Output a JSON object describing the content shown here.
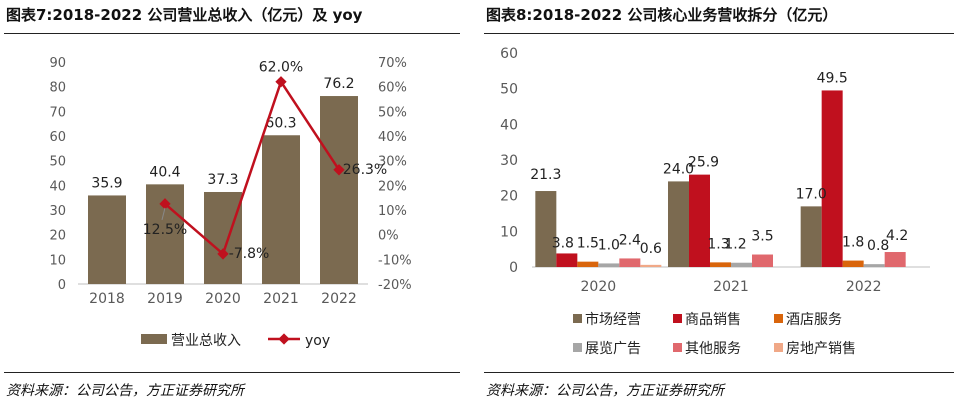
{
  "chart_data": [
    {
      "type": "bar",
      "title": "图表7:2018-2022 公司营业总收入（亿元）及 yoy",
      "categories": [
        "2018",
        "2019",
        "2020",
        "2021",
        "2022"
      ],
      "series": [
        {
          "name": "营业总收入",
          "type": "bar",
          "axis": "left",
          "color": "#7b6a50",
          "values": [
            35.9,
            40.4,
            37.3,
            60.3,
            76.2
          ],
          "labels": [
            "35.9",
            "40.4",
            "37.3",
            "60.3",
            "76.2"
          ]
        },
        {
          "name": "yoy",
          "type": "line",
          "axis": "right",
          "color": "#c0101e",
          "values": [
            null,
            12.5,
            -7.8,
            62.0,
            26.3
          ],
          "labels": [
            "",
            "12.5%",
            "-7.8%",
            "62.0%",
            "26.3%"
          ]
        }
      ],
      "ylim": [
        0,
        90
      ],
      "yticks": [
        "0",
        "10",
        "20",
        "30",
        "40",
        "50",
        "60",
        "70",
        "80",
        "90"
      ],
      "y2lim": [
        -20,
        70
      ],
      "y2ticks": [
        "-20%",
        "-10%",
        "0%",
        "10%",
        "20%",
        "30%",
        "40%",
        "50%",
        "60%",
        "70%"
      ],
      "legend_position": "bottom",
      "grid": false,
      "source": "资料来源：公司公告，方正证券研究所"
    },
    {
      "type": "bar",
      "title": "图表8:2018-2022 公司核心业务营收拆分（亿元）",
      "categories": [
        "2020",
        "2021",
        "2022"
      ],
      "series": [
        {
          "name": "市场经营",
          "color": "#7b6a50",
          "values": [
            21.3,
            24.0,
            17.0
          ],
          "labels": [
            "21.3",
            "24.0",
            "17.0"
          ]
        },
        {
          "name": "商品销售",
          "color": "#c0101e",
          "values": [
            3.8,
            25.9,
            49.5
          ],
          "labels": [
            "3.8",
            "25.9",
            "49.5"
          ]
        },
        {
          "name": "酒店服务",
          "color": "#d9650c",
          "values": [
            1.5,
            1.3,
            1.8
          ],
          "labels": [
            "1.5",
            "1.3",
            "1.8"
          ]
        },
        {
          "name": "展览广告",
          "color": "#a6a6a6",
          "values": [
            1.0,
            1.2,
            0.8
          ],
          "labels": [
            "1.0",
            "1.2",
            "0.8"
          ]
        },
        {
          "name": "其他服务",
          "color": "#e0686d",
          "values": [
            2.4,
            3.5,
            4.2
          ],
          "labels": [
            "2.4",
            "3.5",
            "4.2"
          ]
        },
        {
          "name": "房地产销售",
          "color": "#f0a887",
          "values": [
            0.6,
            null,
            null
          ],
          "labels": [
            "0.6",
            "",
            ""
          ]
        }
      ],
      "ylim": [
        0,
        60
      ],
      "yticks": [
        "0",
        "10",
        "20",
        "30",
        "40",
        "50",
        "60"
      ],
      "legend_position": "bottom",
      "grid": false,
      "source": "资料来源：公司公告，方正证券研究所"
    }
  ]
}
